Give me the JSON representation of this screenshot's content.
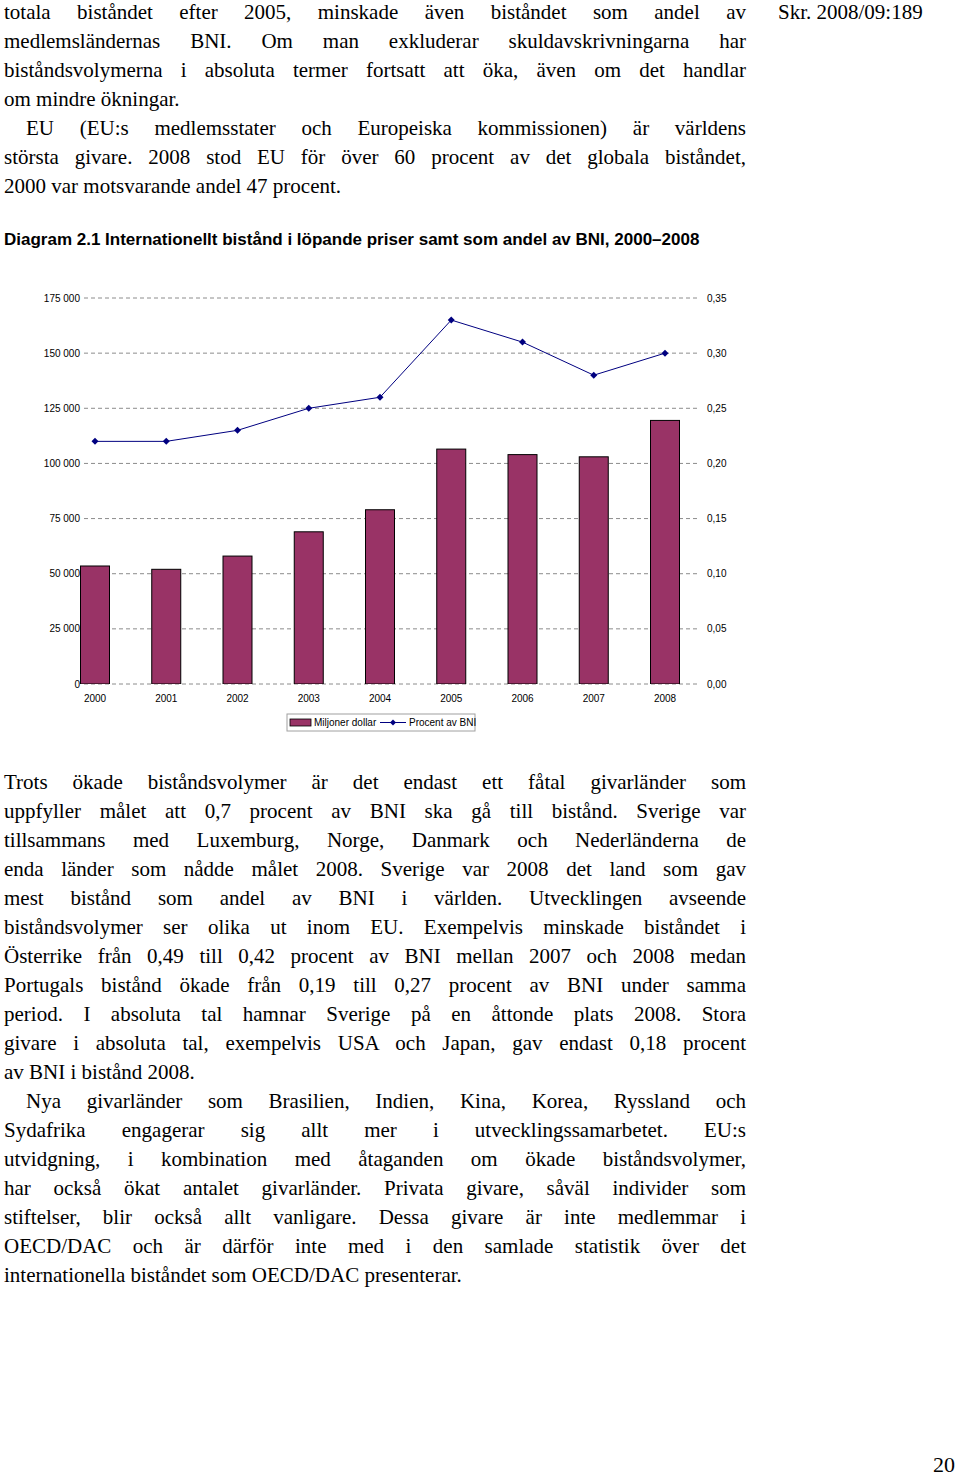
{
  "header": {
    "reference": "Skr. 2008/09:189"
  },
  "intro": {
    "paragraphs": [
      [
        "totala biståndet efter 2005, minskade även biståndet som andel av",
        "medlemsländernas BNI. Om man exkluderar skuldavskrivningarna har",
        "biståndsvolymerna i absoluta termer fortsatt att öka, även om det handlar",
        "om mindre ökningar."
      ],
      [
        "EU (EU:s medlemsstater och Europeiska kommissionen) är världens",
        "största givare. 2008 stod EU för över 60 procent av det globala biståndet,",
        "2000 var motsvarande andel 47 procent."
      ]
    ]
  },
  "chart_data": {
    "type": "bar",
    "title": "Diagram 2.1 Internationellt bistånd i löpande priser samt som andel av BNI, 2000–2008",
    "categories": [
      "2000",
      "2001",
      "2002",
      "2003",
      "2004",
      "2005",
      "2006",
      "2007",
      "2008"
    ],
    "series": [
      {
        "name": "Miljoner dollar",
        "type": "bar",
        "color": "#993366",
        "values": [
          53500,
          52000,
          58000,
          69000,
          79000,
          106500,
          104000,
          103000,
          119500
        ]
      },
      {
        "name": "Procent av BNI",
        "type": "line",
        "color": "#000080",
        "marker": "diamond",
        "axis": "y2",
        "values": [
          0.22,
          0.22,
          0.23,
          0.25,
          0.26,
          0.33,
          0.31,
          0.28,
          0.3
        ]
      }
    ],
    "ylim": [
      0,
      175000
    ],
    "yticks": [
      0,
      {
        "value": 25000,
        "label": "25 000"
      },
      {
        "value": 50000,
        "label": "50 000"
      },
      {
        "value": 75000,
        "label": "75 000"
      },
      {
        "value": 100000,
        "label": "100 000"
      },
      {
        "value": 125000,
        "label": "125 000"
      },
      {
        "value": 150000,
        "label": "150 000"
      },
      {
        "value": 175000,
        "label": "175 000"
      }
    ],
    "y2lim": [
      0,
      0.35
    ],
    "y2ticks": [
      {
        "value": 0,
        "label": "0,00"
      },
      {
        "value": 0.05,
        "label": "0,05"
      },
      {
        "value": 0.1,
        "label": "0,10"
      },
      {
        "value": 0.15,
        "label": "0,15"
      },
      {
        "value": 0.2,
        "label": "0,20"
      },
      {
        "value": 0.25,
        "label": "0,25"
      },
      {
        "value": 0.3,
        "label": "0,30"
      },
      {
        "value": 0.35,
        "label": "0,35"
      }
    ],
    "grid": true,
    "legend": "bottom"
  },
  "body": {
    "paragraphs": [
      [
        "Trots ökade biståndsvolymer är det endast ett fåtal givarländer som",
        "uppfyller målet att 0,7 procent av BNI ska gå till bistånd. Sverige var",
        "tillsammans med Luxemburg, Norge, Danmark och Nederländerna de",
        "enda länder som nådde målet 2008. Sverige var 2008 det land som gav",
        "mest bistånd som andel av BNI i världen. Utvecklingen avseende",
        "biståndsvolymer ser olika ut inom EU. Exempelvis minskade biståndet i",
        "Österrike från 0,49 till 0,42 procent av BNI mellan 2007 och 2008 medan",
        "Portugals bistånd ökade från 0,19 till 0,27 procent av BNI under samma",
        "period. I absoluta tal hamnar Sverige på en åttonde plats 2008. Stora",
        "givare i absoluta tal, exempelvis USA och Japan, gav endast 0,18 procent",
        "av BNI i bistånd 2008."
      ],
      [
        "Nya givarländer som Brasilien, Indien, Kina, Korea, Ryssland och",
        "Sydafrika engagerar sig allt mer i utvecklingssamarbetet. EU:s",
        "utvidgning, i kombination med åtaganden om ökade biståndsvolymer,",
        "har också ökat antalet givarländer. Privata givare, såväl individer som",
        "stiftelser, blir också allt vanligare. Dessa givare är inte medlemmar i",
        "OECD/DAC och är därför inte med i den samlade statistik över det",
        "internationella biståndet som OECD/DAC presenterar."
      ]
    ]
  },
  "footer": {
    "page_number": "20"
  }
}
